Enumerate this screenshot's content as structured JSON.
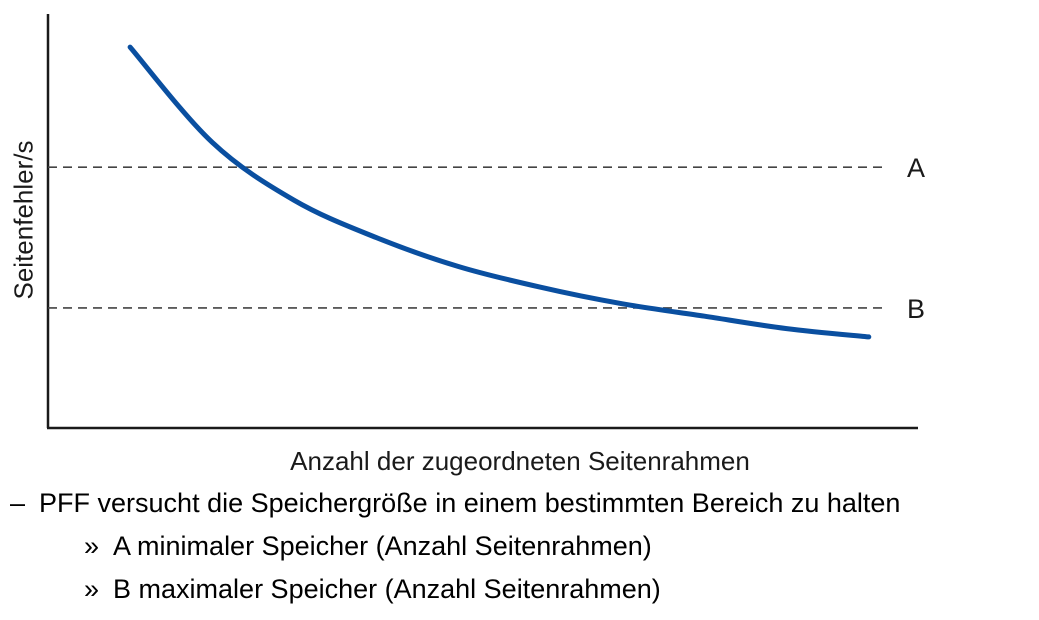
{
  "chart_data": {
    "type": "line",
    "title": "",
    "xlabel": "Anzahl der zugeordneten Seitenrahmen",
    "ylabel": "Seitenfehler/s",
    "x": [
      1,
      2,
      3,
      4,
      5,
      6,
      7,
      8,
      9,
      10
    ],
    "series": [
      {
        "name": "",
        "color": "#0a4fa0",
        "values": [
          9.2,
          6.9,
          5.5,
          4.6,
          3.9,
          3.4,
          3.0,
          2.7,
          2.4,
          2.2
        ]
      }
    ],
    "reference_lines": [
      {
        "label": "A",
        "y": 6.3
      },
      {
        "label": "B",
        "y": 2.9
      }
    ],
    "xlim": [
      0,
      10.6
    ],
    "ylim": [
      0,
      10
    ],
    "ticks": false,
    "grid": false,
    "legend": "none"
  },
  "bullets": {
    "marker1": "–",
    "item1": "PFF versucht die Speichergröße in einem bestimmten Bereich zu halten",
    "marker2": "»",
    "item2": "A minimaler Speicher (Anzahl Seitenrahmen)",
    "marker3": "»",
    "item3": "B maximaler Speicher (Anzahl Seitenrahmen)"
  }
}
